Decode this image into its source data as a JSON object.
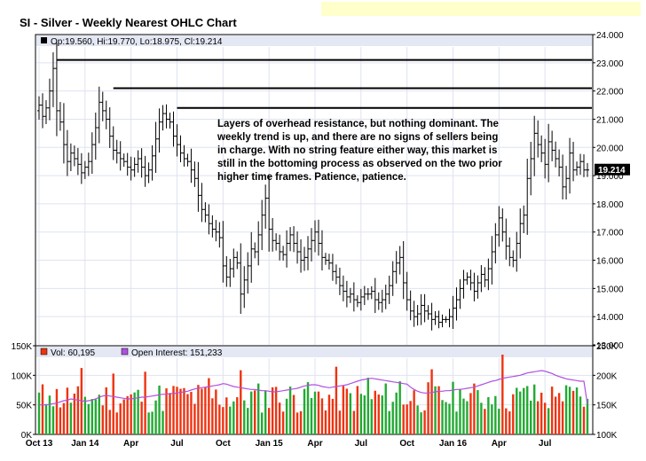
{
  "chart_data": {
    "type": "ohlc",
    "title": "SI - Silver - Weekly Nearest OHLC Chart",
    "price_legend": "Op:19.560, Hi:19.770, Lo:18.975, Cl:19.214",
    "volume_legend": "Vol: 60,195",
    "oi_legend": "Open Interest: 151,233",
    "last_price_label": "19.214",
    "annotation": [
      "Layers of overhead resistance, but nothing dominant.  The",
      "weekly trend is up, and there are no signs of sellers being",
      "in charge.  With no string feature either way, this market is",
      "still in the bottoming process as observed on the two prior",
      "higher time frames.  Patience, patience."
    ],
    "price_axis": {
      "range": [
        13,
        24
      ],
      "ticks": [
        "13.000",
        "14.000",
        "15.000",
        "16.000",
        "17.000",
        "18.000",
        "19.000",
        "20.000",
        "21.000",
        "22.000",
        "23.000",
        "24.000"
      ]
    },
    "volume_axis": {
      "range": [
        0,
        150000
      ],
      "ticks": [
        {
          "value": 0,
          "label": "0K"
        },
        {
          "value": 50000,
          "label": "50K"
        },
        {
          "value": 100000,
          "label": "100K"
        },
        {
          "value": 150000,
          "label": "150K"
        }
      ]
    },
    "oi_axis": {
      "range": [
        100000,
        250000
      ],
      "ticks": [
        {
          "value": 100000,
          "label": "100K"
        },
        {
          "value": 150000,
          "label": "150K"
        },
        {
          "value": 200000,
          "label": "200K"
        },
        {
          "value": 250000,
          "label": "250K"
        }
      ]
    },
    "x_axis": {
      "bar_count": 156,
      "ticks": [
        {
          "bar": 0,
          "label": "Oct 13"
        },
        {
          "bar": 13,
          "label": "Jan 14"
        },
        {
          "bar": 26,
          "label": "Apr"
        },
        {
          "bar": 39,
          "label": "Jul"
        },
        {
          "bar": 52,
          "label": "Oct"
        },
        {
          "bar": 65,
          "label": "Jan 15"
        },
        {
          "bar": 78,
          "label": "Apr"
        },
        {
          "bar": 91,
          "label": "Jul"
        },
        {
          "bar": 104,
          "label": "Oct"
        },
        {
          "bar": 117,
          "label": "Jan 16"
        },
        {
          "bar": 130,
          "label": "Apr"
        },
        {
          "bar": 143,
          "label": "Jul"
        }
      ]
    },
    "resistance_lines": [
      {
        "price": 23.1,
        "from_bar": 5
      },
      {
        "price": 22.1,
        "from_bar": 21
      },
      {
        "price": 21.4,
        "from_bar": 39
      }
    ],
    "weekly_closes": [
      21.5,
      21.1,
      21.4,
      22.0,
      22.8,
      21.3,
      20.9,
      20.1,
      19.5,
      19.8,
      19.6,
      19.4,
      19.1,
      19.3,
      19.5,
      20.1,
      20.7,
      21.6,
      21.3,
      21.0,
      20.4,
      19.9,
      19.8,
      19.6,
      19.5,
      19.3,
      19.2,
      19.4,
      19.6,
      19.3,
      19.0,
      19.2,
      19.7,
      20.3,
      20.9,
      21.2,
      21.0,
      20.9,
      20.4,
      20.1,
      19.8,
      19.6,
      19.5,
      19.2,
      18.9,
      18.3,
      17.8,
      17.6,
      17.3,
      17.1,
      17.0,
      16.8,
      15.8,
      15.4,
      15.7,
      16.1,
      15.9,
      14.8,
      15.3,
      15.8,
      16.4,
      16.3,
      16.9,
      17.6,
      18.2,
      17.1,
      16.7,
      16.6,
      16.3,
      16.2,
      16.6,
      16.9,
      16.6,
      16.3,
      16.0,
      16.1,
      16.4,
      16.7,
      17.0,
      16.6,
      16.1,
      16.0,
      15.9,
      15.6,
      15.4,
      15.1,
      14.9,
      14.7,
      14.8,
      14.6,
      14.5,
      14.7,
      14.8,
      14.8,
      14.9,
      14.6,
      14.5,
      14.6,
      14.8,
      15.1,
      15.6,
      15.9,
      16.1,
      15.2,
      14.6,
      14.2,
      14.0,
      14.1,
      14.4,
      14.2,
      14.1,
      13.9,
      14.0,
      13.8,
      13.9,
      13.9,
      14.0,
      14.3,
      14.6,
      15.0,
      15.3,
      15.4,
      15.2,
      14.9,
      15.2,
      15.5,
      15.3,
      15.7,
      16.3,
      16.9,
      17.5,
      17.0,
      16.5,
      16.1,
      16.0,
      16.6,
      17.3,
      17.6,
      18.9,
      19.6,
      20.5,
      20.1,
      19.8,
      19.4,
      20.2,
      19.9,
      19.6,
      19.3,
      18.6,
      18.9,
      19.8,
      19.2,
      19.3,
      19.5,
      19.2,
      19.2
    ],
    "volume_pattern_note": "",
    "open_interest_approx": [
      150000,
      150000,
      150000,
      151000,
      152000,
      153000,
      155000,
      157000,
      158000,
      160000,
      159000,
      158000,
      157000,
      156000,
      157000,
      158000,
      160000,
      163000,
      165000,
      166000,
      165000,
      164000,
      163000,
      162000,
      161000,
      160000,
      160000,
      161000,
      162000,
      163000,
      163000,
      164000,
      165000,
      166000,
      167000,
      168000,
      168000,
      169000,
      169000,
      170000,
      171000,
      172000,
      173000,
      175000,
      177000,
      178000,
      179000,
      180000,
      181000,
      182000,
      183000,
      184000,
      186000,
      185000,
      183000,
      181000,
      180000,
      179000,
      178000,
      177000,
      176000,
      176000,
      175000,
      174000,
      174000,
      173000,
      172000,
      172000,
      173000,
      174000,
      175000,
      176000,
      177000,
      178000,
      180000,
      182000,
      183000,
      184000,
      184000,
      183000,
      181000,
      180000,
      179000,
      180000,
      181000,
      182000,
      183000,
      184000,
      186000,
      188000,
      190000,
      192000,
      193000,
      194000,
      195000,
      194000,
      193000,
      192000,
      191000,
      190000,
      189000,
      188000,
      187000,
      186000,
      185000,
      180000,
      176000,
      173000,
      171000,
      170000,
      170000,
      171000,
      172000,
      173000,
      173000,
      174000,
      174000,
      175000,
      176000,
      176000,
      177000,
      178000,
      179000,
      180000,
      182000,
      184000,
      186000,
      188000,
      190000,
      191000,
      193000,
      195000,
      196000,
      197000,
      198000,
      199000,
      200000,
      202000,
      204000,
      205000,
      206000,
      207000,
      208000,
      207000,
      205000,
      203000,
      200000,
      198000,
      196000,
      194000,
      193000,
      192000,
      191000,
      190000,
      190000,
      151000
    ]
  }
}
